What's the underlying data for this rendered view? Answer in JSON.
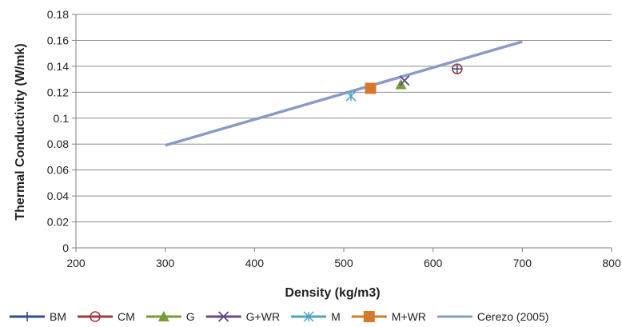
{
  "chart_data": {
    "type": "scatter",
    "title": "",
    "xlabel": "Density (kg/m3)",
    "ylabel": "Thermal Conductivity (W/mk)",
    "xlim": [
      200,
      800
    ],
    "ylim": [
      0,
      0.18
    ],
    "xticks": [
      "200",
      "300",
      "400",
      "500",
      "600",
      "700",
      "800"
    ],
    "yticks": [
      "0",
      "0.02",
      "0.04",
      "0.06",
      "0.08",
      "0.1",
      "0.12",
      "0.14",
      "0.16",
      "0.18"
    ],
    "grid": "horizontal",
    "legend_position": "bottom",
    "series": [
      {
        "name": "BM",
        "marker": "plus",
        "color": "#2f4f8a",
        "points": [
          {
            "x": 627,
            "y": 0.138
          }
        ]
      },
      {
        "name": "CM",
        "marker": "circle",
        "color": "#9b3b3b",
        "points": [
          {
            "x": 627,
            "y": 0.138
          }
        ]
      },
      {
        "name": "G",
        "marker": "triangle",
        "color": "#7a9a3a",
        "points": [
          {
            "x": 564,
            "y": 0.126
          }
        ]
      },
      {
        "name": "G+WR",
        "marker": "x",
        "color": "#5f4a8b",
        "points": [
          {
            "x": 568,
            "y": 0.129
          }
        ]
      },
      {
        "name": "M",
        "marker": "star",
        "color": "#4aa3c0",
        "points": [
          {
            "x": 508,
            "y": 0.117
          }
        ]
      },
      {
        "name": "M+WR",
        "marker": "square",
        "color": "#d47a2a",
        "points": [
          {
            "x": 530,
            "y": 0.123
          }
        ]
      },
      {
        "name": "Cerezo (2005)",
        "marker": "line",
        "color": "#8b9bc8",
        "points": [
          {
            "x": 300,
            "y": 0.079
          },
          {
            "x": 700,
            "y": 0.159
          }
        ]
      }
    ]
  }
}
